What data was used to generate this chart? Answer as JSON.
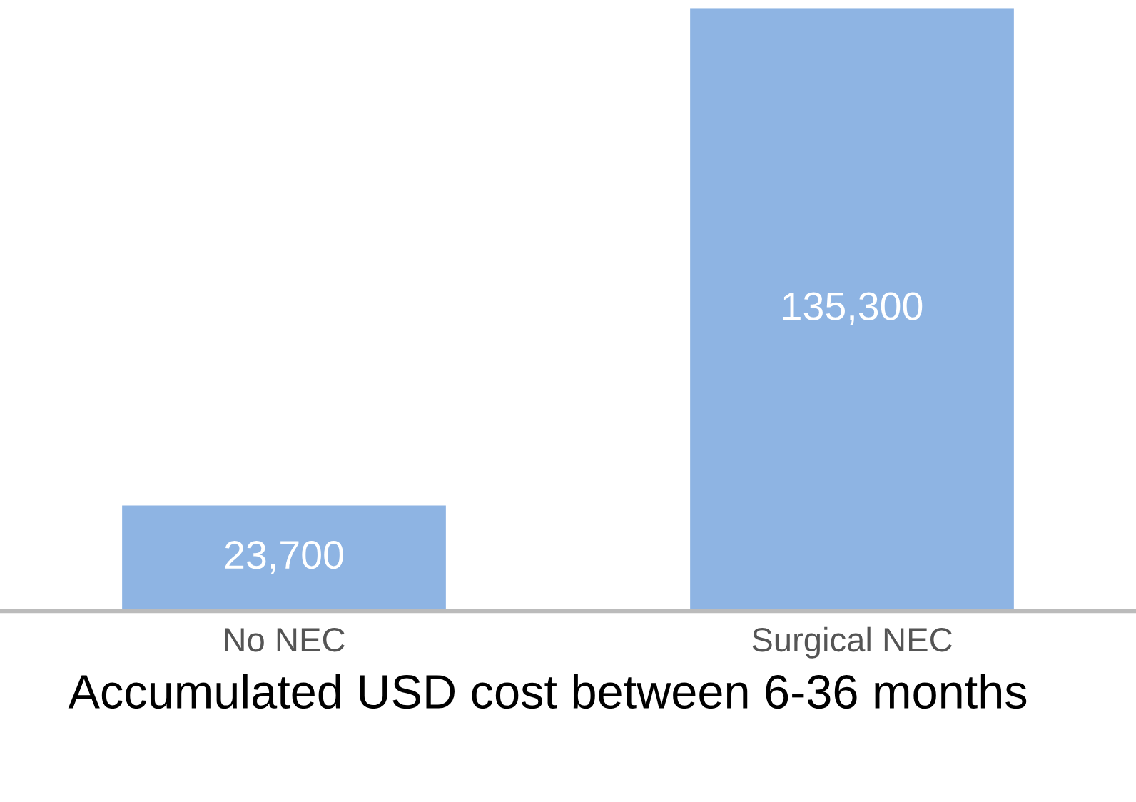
{
  "chart_data": {
    "type": "bar",
    "xlabel": "Accumulated USD cost between 6-36 months",
    "categories": [
      "No NEC",
      "Surgical NEC"
    ],
    "values": [
      23700,
      135300
    ],
    "value_labels": [
      "23,700",
      "135,300"
    ],
    "color": "#8eb4e3"
  }
}
